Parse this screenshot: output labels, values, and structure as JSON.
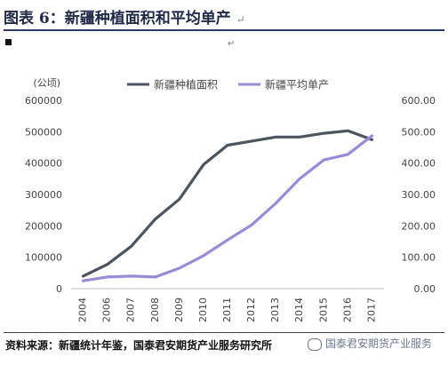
{
  "figure": {
    "title": "图表 6：新疆种植面积和平均单产",
    "para_mark": "↵",
    "source": "资料来源：新疆统计年鉴，国泰君安期货产业服务研究所",
    "watermark": "国泰君安期货产业服务"
  },
  "colors": {
    "area_series": "#4b5560",
    "yield_series": "#9b8ad8",
    "axis": "#bfbfbf",
    "title_rule": "#2b3a67"
  },
  "chart_data": {
    "type": "line",
    "x": [
      "2004",
      "2006",
      "2007",
      "2008",
      "2009",
      "2010",
      "2011",
      "2012",
      "2013",
      "2014",
      "2015",
      "2016",
      "2017"
    ],
    "left_axis": {
      "unit": "(公顷)",
      "ylim": [
        0,
        600000
      ],
      "ticks": [
        "0",
        "100000",
        "200000",
        "300000",
        "400000",
        "500000",
        "600000"
      ]
    },
    "right_axis": {
      "ylim": [
        0,
        600
      ],
      "ticks": [
        "0.00",
        "100.00",
        "200.00",
        "300.00",
        "400.00",
        "500.00",
        "600.00"
      ]
    },
    "legend_position": "top-center",
    "grid": false,
    "series": [
      {
        "name": "新疆种植面积",
        "axis": "left",
        "values": [
          40000,
          77000,
          135000,
          222000,
          285000,
          395000,
          457000,
          470000,
          483000,
          483000,
          495000,
          503000,
          475000
        ]
      },
      {
        "name": "新疆平均单产",
        "axis": "right",
        "values": [
          25,
          37,
          40,
          37,
          65,
          105,
          155,
          203,
          272,
          350,
          410,
          428,
          487
        ]
      }
    ]
  }
}
